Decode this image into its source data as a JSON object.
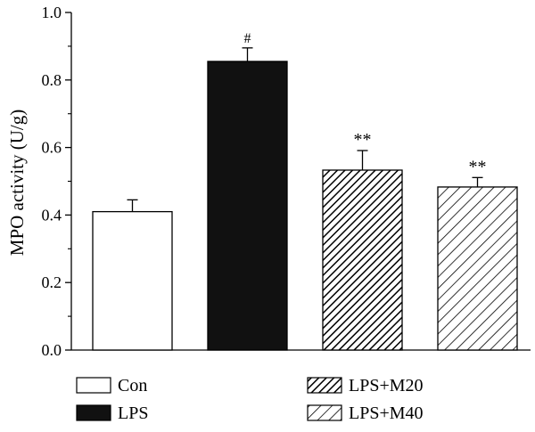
{
  "chart_data": {
    "type": "bar",
    "title": "",
    "xlabel": "",
    "ylabel": "MPO activity (U/g)",
    "ylim": [
      0,
      1.0
    ],
    "yticks": [
      "0.0",
      "0.2",
      "0.4",
      "0.6",
      "0.8",
      "1.0"
    ],
    "grid": false,
    "legend_position": "bottom",
    "categories": [
      "Con",
      "LPS",
      "LPS+M20",
      "LPS+M40"
    ],
    "values": [
      0.41,
      0.855,
      0.533,
      0.483
    ],
    "errors": [
      0.035,
      0.04,
      0.058,
      0.028
    ],
    "annotations": [
      "",
      "#",
      "**",
      "**"
    ],
    "fills": [
      "white",
      "black",
      "dense-hatch",
      "sparse-hatch"
    ]
  },
  "colors": {
    "bar_black": "#111111",
    "outline": "#000000",
    "background": "#ffffff"
  }
}
